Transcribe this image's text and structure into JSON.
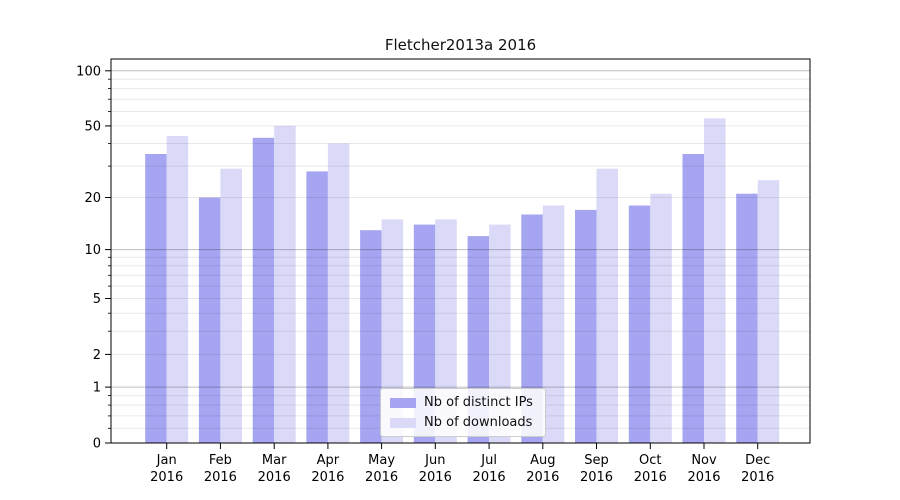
{
  "figure": {
    "background": "#ffffff"
  },
  "chart_data": {
    "type": "bar",
    "title": "Fletcher2013a 2016",
    "categories": [
      "Jan",
      "Feb",
      "Mar",
      "Apr",
      "May",
      "Jun",
      "Jul",
      "Aug",
      "Sep",
      "Oct",
      "Nov",
      "Dec"
    ],
    "category_year": "2016",
    "series": [
      {
        "name": "Nb of distinct IPs",
        "color": "#a5a5f2",
        "values": [
          35,
          20,
          43,
          28,
          13,
          14,
          12,
          16,
          17,
          18,
          35,
          21
        ]
      },
      {
        "name": "Nb of downloads",
        "color": "#dadaf8",
        "values": [
          44,
          29,
          50,
          40,
          15,
          15,
          14,
          18,
          29,
          21,
          55,
          25
        ]
      }
    ],
    "xlabel": "",
    "ylabel": "",
    "yscale": "log1p",
    "ylim": [
      0,
      115
    ],
    "ytick_values": [
      0,
      1,
      2,
      5,
      10,
      20,
      50,
      100
    ],
    "grid": {
      "major_values": [
        1,
        10,
        100
      ],
      "minor_values": [
        0.2,
        0.4,
        0.6,
        0.8,
        2,
        3,
        4,
        5,
        6,
        7,
        8,
        9,
        20,
        30,
        40,
        50,
        60,
        70,
        80,
        90
      ]
    },
    "legend_position": "lower center"
  }
}
